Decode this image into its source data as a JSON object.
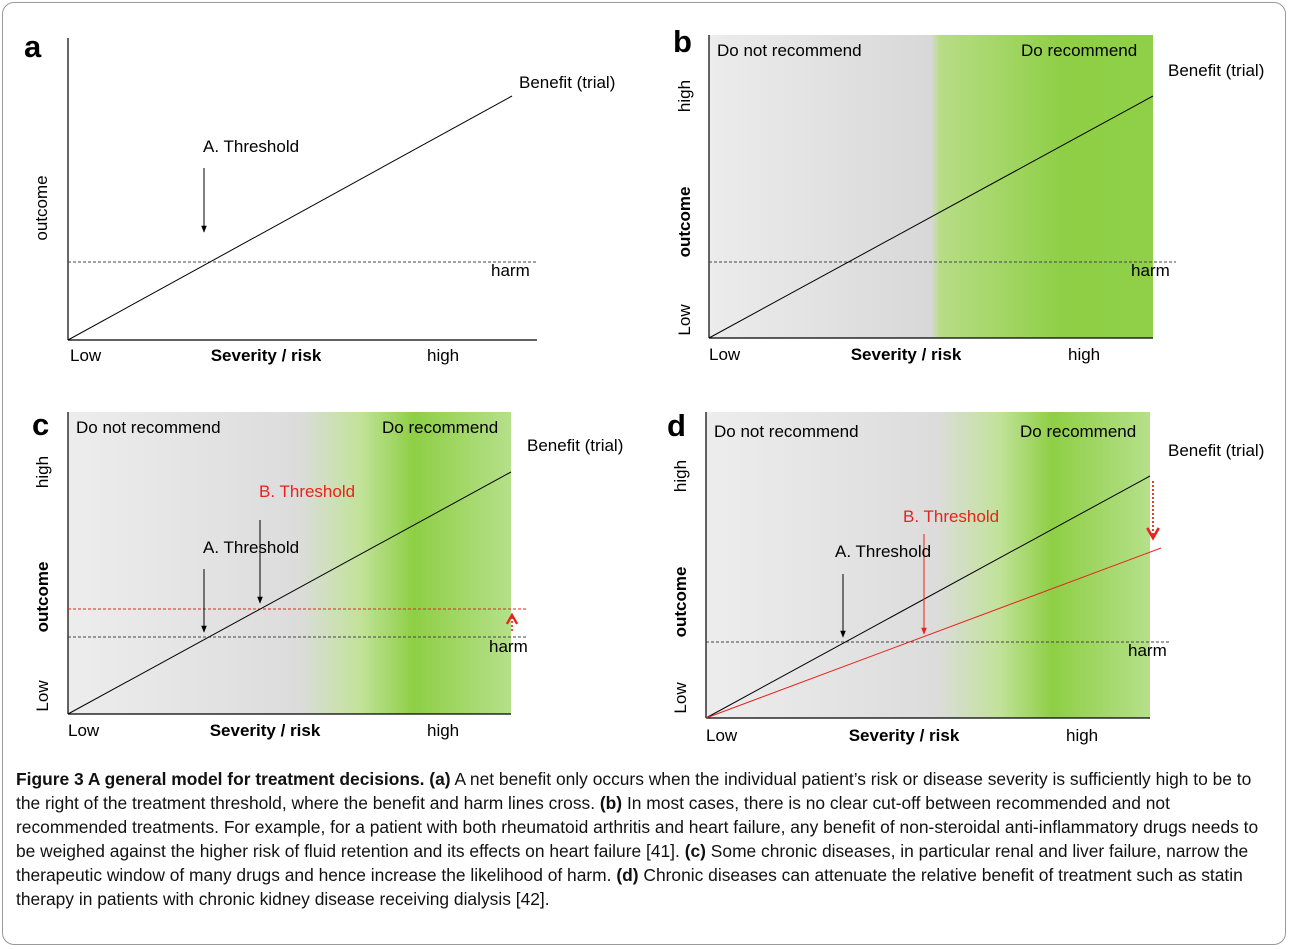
{
  "colors": {
    "green": "#8ecf45",
    "grey": "#e0e0e0",
    "threshold_b": "#e8231c",
    "dashed": "#444444"
  },
  "panels": [
    {
      "letter": "a",
      "shading": false,
      "left_zone_label": "",
      "right_zone_label": "",
      "benefit_label": "Benefit (trial)",
      "harm_label": "harm",
      "ylabel": "outcome",
      "ylabel_bold": false,
      "ytick_low": "",
      "ytick_high": "",
      "xtick_low": "Low",
      "xlabel": "Severity / risk",
      "xtick_high": "high",
      "threshold_a_label": "A. Threshold",
      "threshold_b_label": ""
    },
    {
      "letter": "b",
      "shading": true,
      "left_zone_label": "Do not recommend",
      "right_zone_label": "Do recommend",
      "benefit_label": "Benefit (trial)",
      "harm_label": "harm",
      "ylabel": "outcome",
      "ylabel_bold": true,
      "ytick_low": "Low",
      "ytick_high": "high",
      "xtick_low": "Low",
      "xlabel": "Severity / risk",
      "xtick_high": "high",
      "threshold_a_label": "",
      "threshold_b_label": ""
    },
    {
      "letter": "c",
      "shading": true,
      "left_zone_label": "Do not recommend",
      "right_zone_label": "Do recommend",
      "benefit_label": "Benefit (trial)",
      "harm_label": "harm",
      "ylabel": "outcome",
      "ylabel_bold": true,
      "ytick_low": "Low",
      "ytick_high": "high",
      "xtick_low": "Low",
      "xlabel": "Severity / risk",
      "xtick_high": "high",
      "threshold_a_label": "A. Threshold",
      "threshold_b_label": "B. Threshold"
    },
    {
      "letter": "d",
      "shading": true,
      "left_zone_label": "Do not recommend",
      "right_zone_label": "Do recommend",
      "benefit_label": "Benefit (trial)",
      "harm_label": "harm",
      "ylabel": "outcome",
      "ylabel_bold": true,
      "ytick_low": "Low",
      "ytick_high": "high",
      "xtick_low": "Low",
      "xlabel": "Severity / risk",
      "xtick_high": "high",
      "threshold_a_label": "A. Threshold",
      "threshold_b_label": "B. Threshold"
    }
  ],
  "caption": {
    "title": "Figure 3 A general model for treatment decisions.",
    "parts": [
      {
        "tag": "(a)",
        "text": "A net benefit only occurs when the individual patient’s risk or disease severity is sufficiently high to be to the right of the treatment threshold, where the benefit and harm lines cross."
      },
      {
        "tag": "(b)",
        "text": "In most cases, there is no clear cut-off between recommended and not recommended treatments. For example, for a patient with both rheumatoid arthritis and heart failure, any benefit of non-steroidal anti-inflammatory drugs needs to be weighed against the higher risk of fluid retention and its effects on heart failure [41]."
      },
      {
        "tag": "(c)",
        "text": "Some chronic diseases, in particular renal and liver failure, narrow the therapeutic window of many drugs and hence increase the likelihood of harm."
      },
      {
        "tag": "(d)",
        "text": "Chronic diseases can attenuate the relative benefit of treatment such as statin therapy in patients with chronic kidney disease receiving dialysis [42]."
      }
    ]
  }
}
